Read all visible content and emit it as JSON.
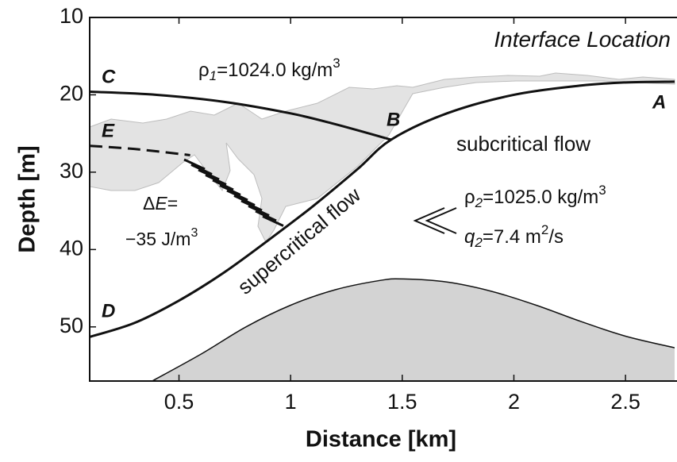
{
  "chart_data": {
    "type": "line",
    "xlabel": "Distance [km]",
    "ylabel": "Depth [m]",
    "xlim": [
      0.1,
      2.72
    ],
    "ylim": [
      10,
      57
    ],
    "y_inverted": true,
    "xticks": [
      0.5,
      1,
      1.5,
      2,
      2.5
    ],
    "yticks": [
      10,
      20,
      30,
      40,
      50
    ],
    "lines": [
      {
        "x": [
          0.1,
          0.4,
          0.7,
          1.0,
          1.2,
          1.45
        ],
        "values": [
          19.6,
          20.0,
          20.9,
          22.4,
          23.8,
          25.8
        ],
        "color": "#111111",
        "dashed": false,
        "filled": false
      },
      {
        "x": [
          0.1,
          0.3,
          0.5,
          0.7,
          0.9,
          1.1,
          1.3,
          1.45,
          1.7,
          2.0,
          2.3,
          2.5,
          2.72
        ],
        "values": [
          51.3,
          49.5,
          46.6,
          43.0,
          38.8,
          34.4,
          29.6,
          25.8,
          22.4,
          20.0,
          18.8,
          18.4,
          18.3
        ],
        "color": "#111111",
        "dashed": false,
        "filled": false
      },
      {
        "x": [
          0.1,
          0.3,
          0.55
        ],
        "values": [
          26.6,
          27.0,
          27.8
        ],
        "color": "#111111",
        "dashed": true,
        "filled": false
      },
      {
        "x": [
          0.38,
          0.6,
          0.8,
          1.0,
          1.2,
          1.4,
          1.5,
          1.7,
          1.9,
          2.1,
          2.3,
          2.5,
          2.72
        ],
        "values": [
          57,
          53.5,
          50,
          47.2,
          45.2,
          44,
          43.8,
          44.2,
          45.4,
          47.2,
          49.3,
          51.2,
          52.7
        ],
        "color": "#111111",
        "dashed": false,
        "filled": true,
        "fill_color": "#d3d3d3"
      }
    ],
    "annotations": [
      {
        "parts": [
          {
            "text": "Interface Location",
            "italic": true
          }
        ]
      },
      {
        "parts": [
          {
            "text": "ρ"
          },
          {
            "text": "1",
            "sub": true,
            "italic": true
          },
          {
            "text": "=1024.0 kg/m"
          },
          {
            "text": "3",
            "sup": true
          }
        ]
      },
      {
        "parts": [
          {
            "text": "subcritical flow"
          }
        ]
      },
      {
        "parts": [
          {
            "text": "supercritical flow"
          }
        ]
      },
      {
        "parts": [
          {
            "text": "Δ"
          },
          {
            "text": "E",
            "italic": true
          },
          {
            "text": "="
          }
        ]
      },
      {
        "parts": [
          {
            "text": "−35 J/m"
          },
          {
            "text": "3",
            "sup": true
          }
        ]
      },
      {
        "parts": [
          {
            "text": "ρ"
          },
          {
            "text": "2",
            "sub": true,
            "italic": true
          },
          {
            "text": "=1025.0 kg/m"
          },
          {
            "text": "3",
            "sup": true
          }
        ]
      },
      {
        "parts": [
          {
            "text": "q",
            "italic": true
          },
          {
            "text": "2",
            "sub": true,
            "italic": true
          },
          {
            "text": "=7.4 m"
          },
          {
            "text": "2",
            "sup": true
          },
          {
            "text": "/s"
          }
        ]
      }
    ],
    "point_labels": [
      "C",
      "B",
      "A",
      "E",
      "D"
    ]
  }
}
